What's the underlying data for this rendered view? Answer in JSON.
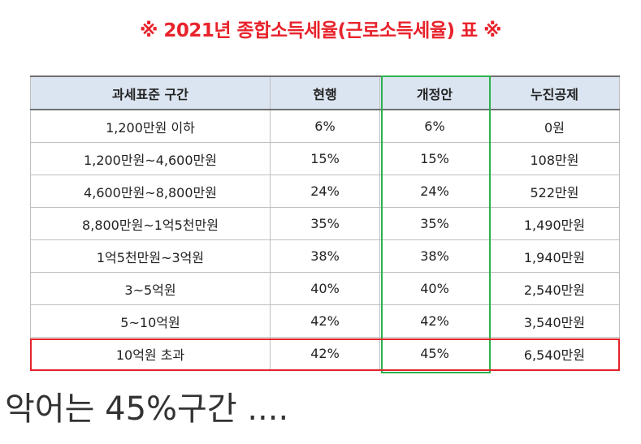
{
  "title": "※ 2021년 종합소득세율(근로소득세율) 표 ※",
  "table": {
    "headers": [
      "과세표준 구간",
      "현행",
      "개정안",
      "누진공제"
    ],
    "rows": [
      [
        "1,200만원 이하",
        "6%",
        "6%",
        "0원"
      ],
      [
        "1,200만원~4,600만원",
        "15%",
        "15%",
        "108만원"
      ],
      [
        "4,600만원~8,800만원",
        "24%",
        "24%",
        "522만원"
      ],
      [
        "8,800만원~1억5천만원",
        "35%",
        "35%",
        "1,490만원"
      ],
      [
        "1억5천만원~3억원",
        "38%",
        "38%",
        "1,940만원"
      ],
      [
        "3~5억원",
        "40%",
        "40%",
        "2,540만원"
      ],
      [
        "5~10억원",
        "42%",
        "42%",
        "3,540만원"
      ],
      [
        "10억원 초과",
        "42%",
        "45%",
        "6,540만원"
      ]
    ]
  },
  "highlight_colors": {
    "proposal_column": "#2bb24c",
    "top_bracket_row": "#e3242b"
  },
  "caption": "악어는 45%구간 ...."
}
